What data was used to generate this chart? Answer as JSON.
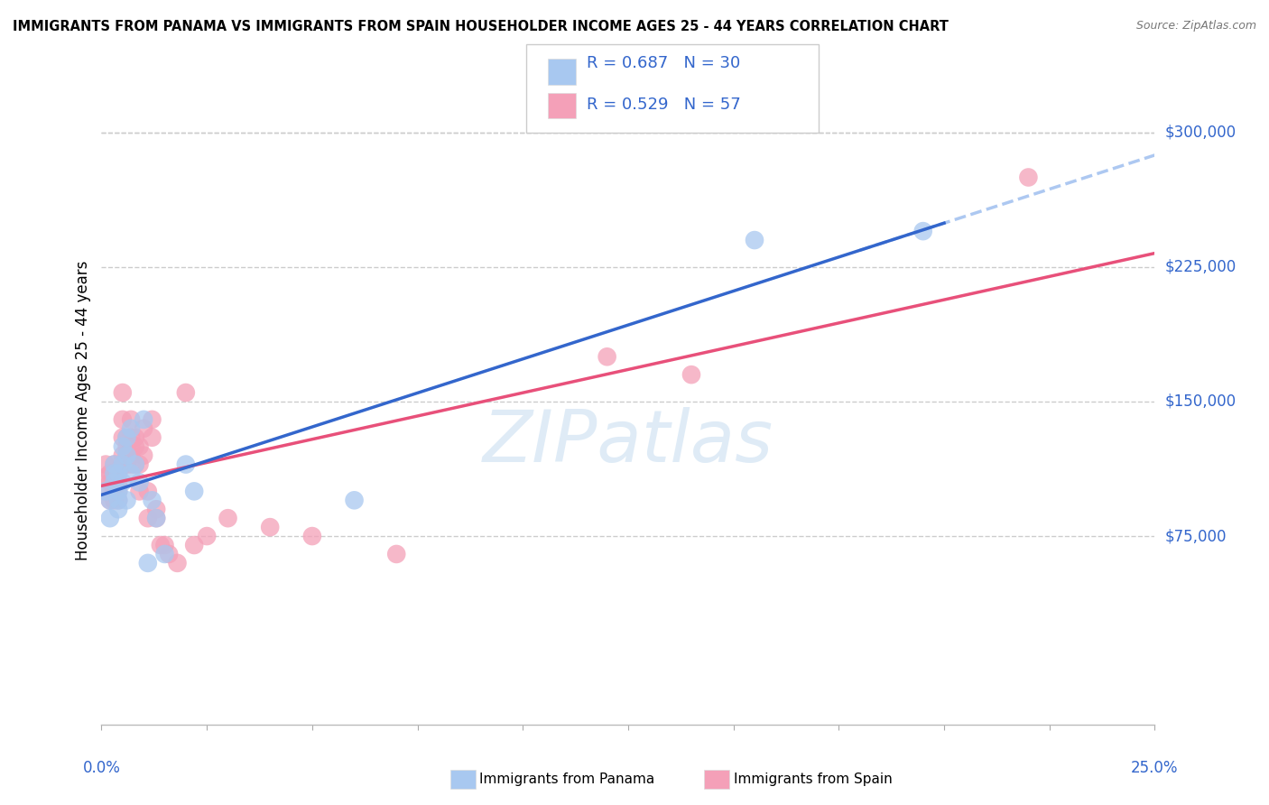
{
  "title": "IMMIGRANTS FROM PANAMA VS IMMIGRANTS FROM SPAIN HOUSEHOLDER INCOME AGES 25 - 44 YEARS CORRELATION CHART",
  "source": "Source: ZipAtlas.com",
  "ylabel": "Householder Income Ages 25 - 44 years",
  "xlim": [
    0.0,
    0.25
  ],
  "ylim": [
    -30000,
    320000
  ],
  "yticks": [
    75000,
    150000,
    225000,
    300000
  ],
  "ytick_labels": [
    "$75,000",
    "$150,000",
    "$225,000",
    "$300,000"
  ],
  "xticks": [
    0.0,
    0.025,
    0.05,
    0.075,
    0.1,
    0.125,
    0.15,
    0.175,
    0.2,
    0.225,
    0.25
  ],
  "panama_color": "#a8c8f0",
  "spain_color": "#f4a0b8",
  "panama_line_color": "#3366cc",
  "spain_line_color": "#e8507a",
  "panama_dashed_color": "#99bbee",
  "panama_R": 0.687,
  "panama_N": 30,
  "spain_R": 0.529,
  "spain_N": 57,
  "watermark": "ZIPatlas",
  "panama_scatter_x": [
    0.001,
    0.002,
    0.002,
    0.003,
    0.003,
    0.003,
    0.004,
    0.004,
    0.004,
    0.004,
    0.005,
    0.005,
    0.005,
    0.006,
    0.006,
    0.006,
    0.007,
    0.007,
    0.008,
    0.009,
    0.01,
    0.011,
    0.012,
    0.013,
    0.015,
    0.02,
    0.022,
    0.06,
    0.155,
    0.195
  ],
  "panama_scatter_y": [
    100000,
    85000,
    95000,
    110000,
    105000,
    115000,
    100000,
    110000,
    95000,
    90000,
    125000,
    115000,
    105000,
    120000,
    130000,
    95000,
    135000,
    110000,
    115000,
    105000,
    140000,
    60000,
    95000,
    85000,
    65000,
    115000,
    100000,
    95000,
    240000,
    245000
  ],
  "spain_scatter_x": [
    0.001,
    0.001,
    0.001,
    0.002,
    0.002,
    0.002,
    0.003,
    0.003,
    0.003,
    0.003,
    0.003,
    0.004,
    0.004,
    0.004,
    0.004,
    0.005,
    0.005,
    0.005,
    0.005,
    0.005,
    0.006,
    0.006,
    0.006,
    0.006,
    0.007,
    0.007,
    0.007,
    0.007,
    0.007,
    0.008,
    0.008,
    0.008,
    0.009,
    0.009,
    0.009,
    0.01,
    0.01,
    0.011,
    0.011,
    0.012,
    0.012,
    0.013,
    0.013,
    0.014,
    0.015,
    0.016,
    0.018,
    0.02,
    0.022,
    0.025,
    0.03,
    0.04,
    0.05,
    0.07,
    0.12,
    0.14,
    0.22
  ],
  "spain_scatter_y": [
    100000,
    108000,
    115000,
    105000,
    95000,
    110000,
    100000,
    95000,
    115000,
    105000,
    110000,
    100000,
    105000,
    95000,
    110000,
    155000,
    140000,
    130000,
    120000,
    115000,
    130000,
    125000,
    120000,
    115000,
    140000,
    130000,
    125000,
    120000,
    115000,
    130000,
    125000,
    115000,
    125000,
    115000,
    100000,
    135000,
    120000,
    100000,
    85000,
    140000,
    130000,
    90000,
    85000,
    70000,
    70000,
    65000,
    60000,
    155000,
    70000,
    75000,
    85000,
    80000,
    75000,
    65000,
    175000,
    165000,
    275000
  ]
}
